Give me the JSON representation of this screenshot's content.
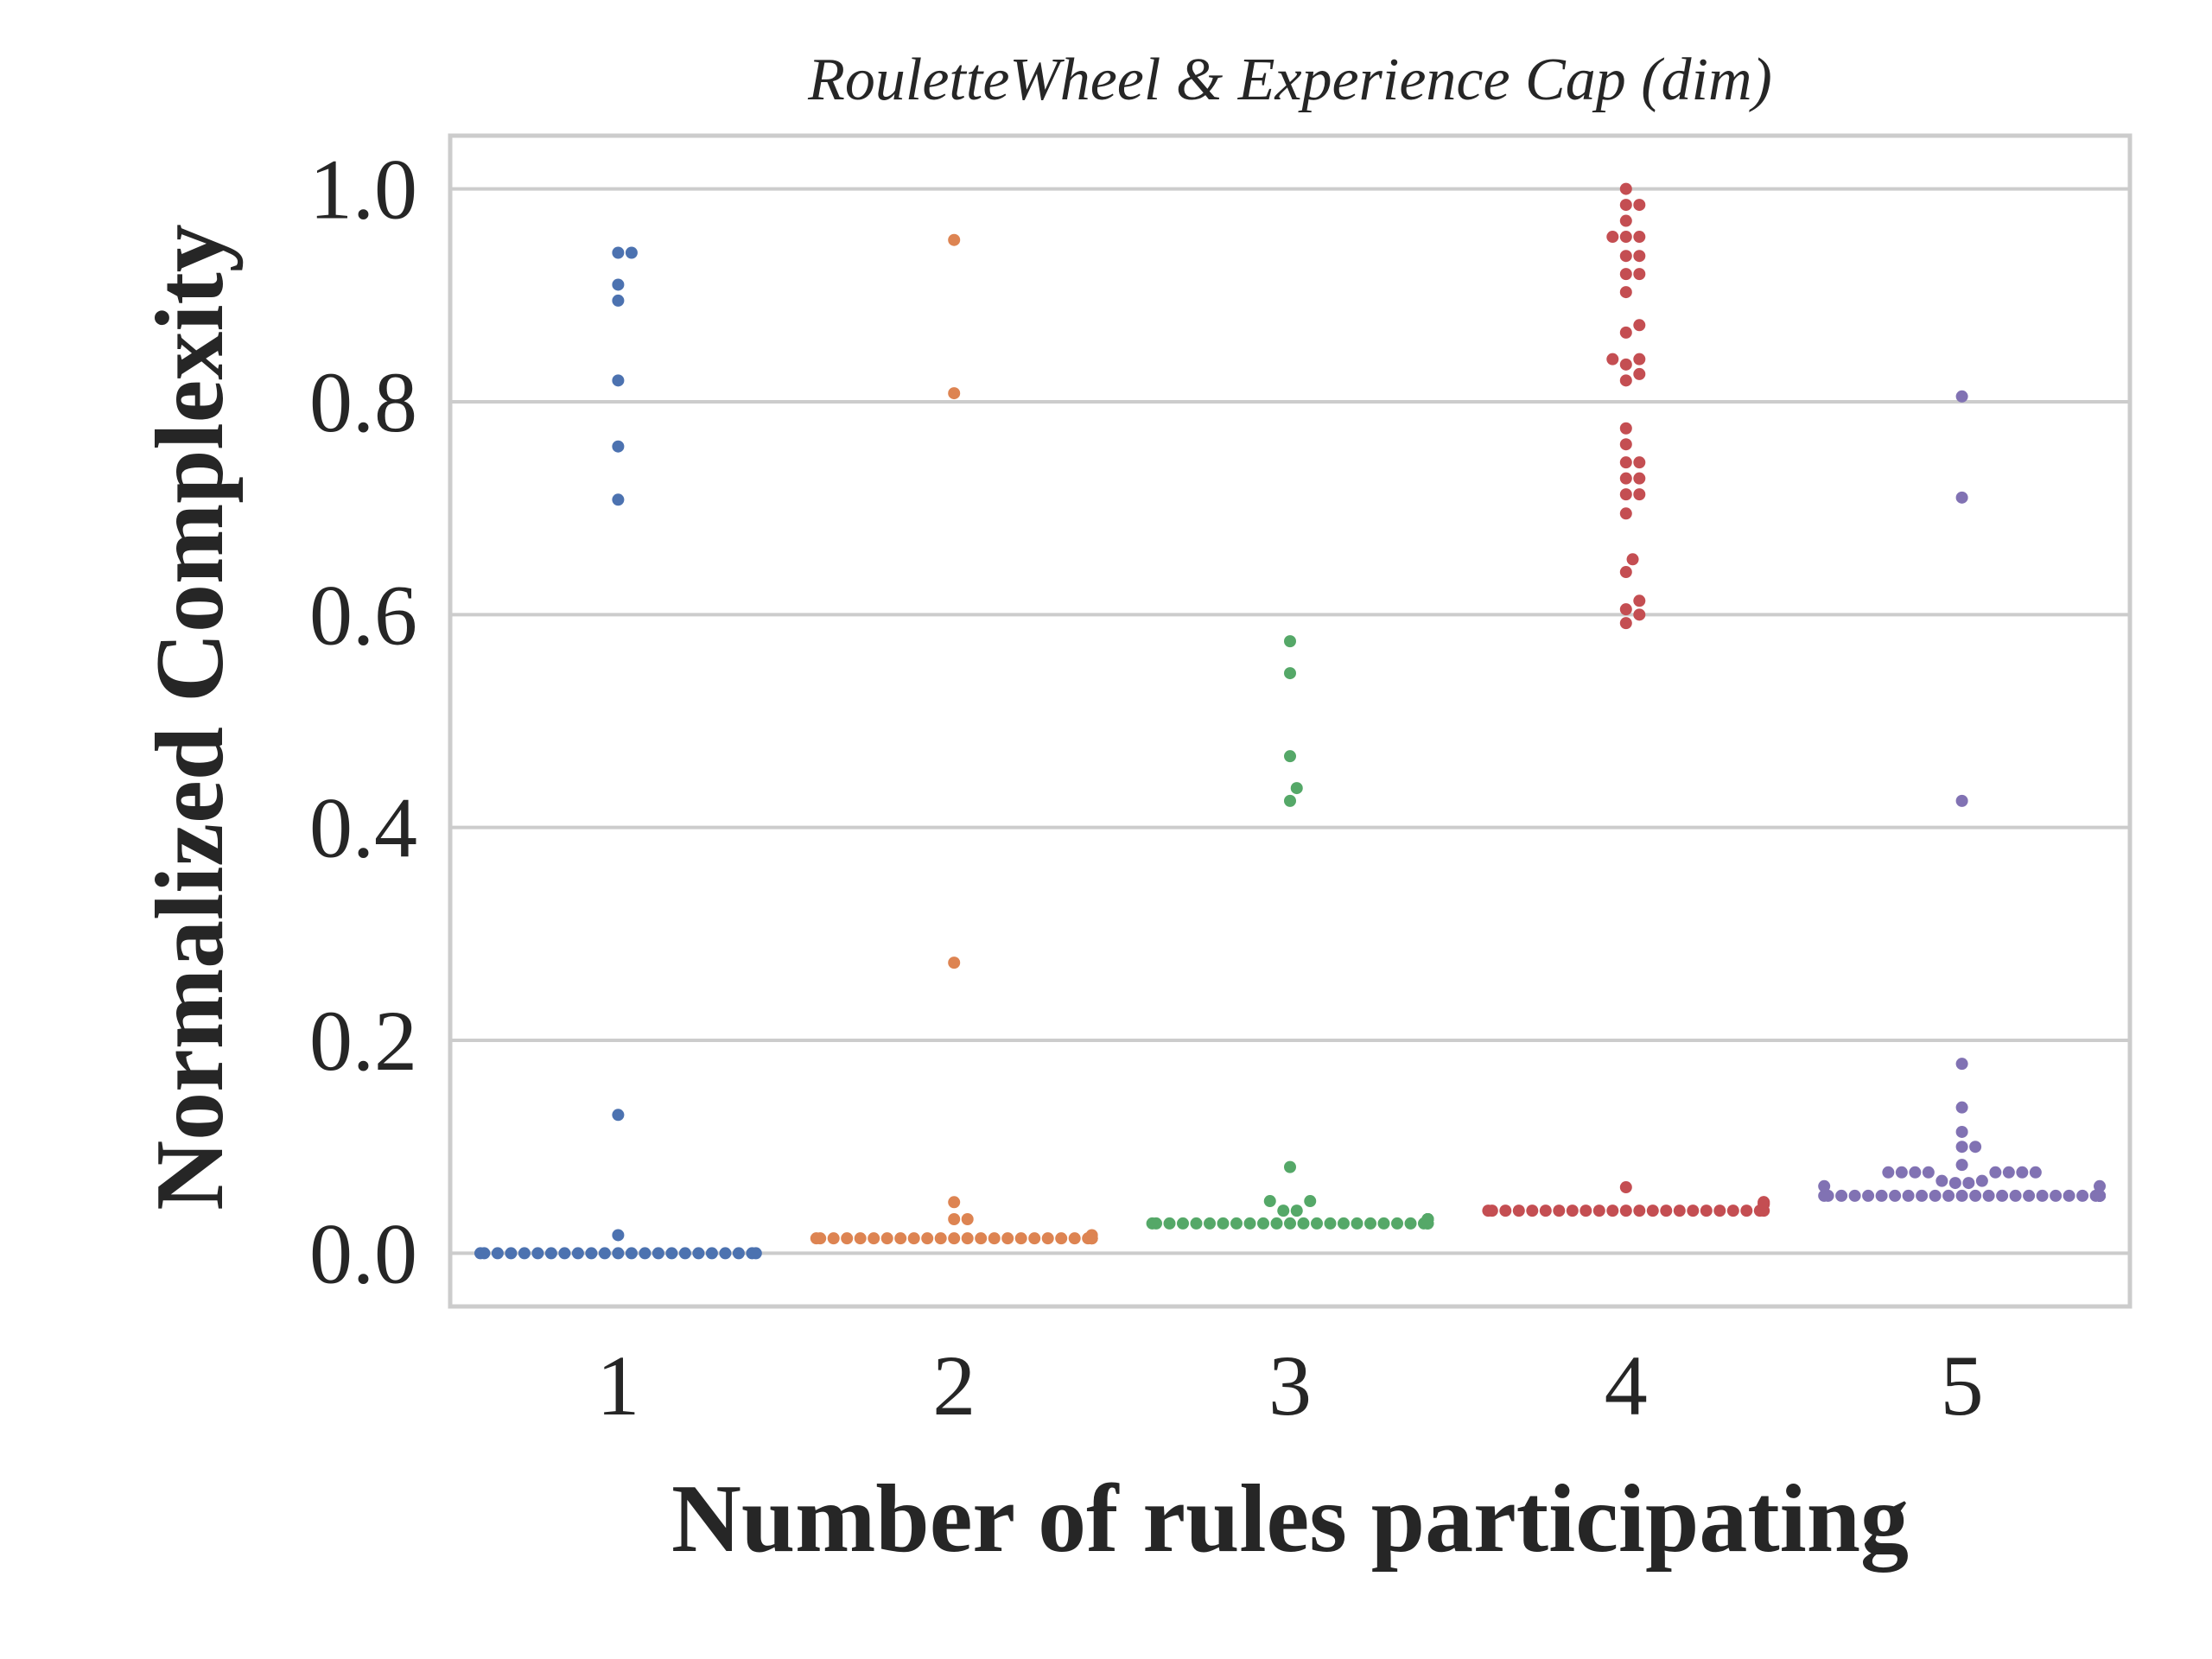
{
  "chart_data": {
    "type": "scatter",
    "subtype": "swarm",
    "title": "RouletteWheel & Experience Cap (dim)",
    "xlabel": "Number of rules participating",
    "ylabel": "Normalized Complexity",
    "categories": [
      "1",
      "2",
      "3",
      "4",
      "5"
    ],
    "ylim": [
      -0.05,
      1.05
    ],
    "yticks": [
      "0.0",
      "0.2",
      "0.4",
      "0.6",
      "0.8",
      "1.0"
    ],
    "ytick_values": [
      0.0,
      0.2,
      0.4,
      0.6,
      0.8,
      1.0
    ],
    "grid": true,
    "legend": "none",
    "series": [
      {
        "category": "1",
        "color": "#4c72b0",
        "values": [
          0.94,
          0.94,
          0.91,
          0.895,
          0.82,
          0.758,
          0.708,
          0.13,
          0.017,
          0.0,
          0.0,
          0.0,
          0.0,
          0.0,
          0.0,
          0.0,
          0.0,
          0.0,
          0.0,
          0.0,
          0.0,
          0.0,
          0.0,
          0.0,
          0.0,
          0.0,
          0.0,
          0.0,
          0.0,
          0.0,
          0.0,
          0.0
        ]
      },
      {
        "category": "2",
        "color": "#dd8452",
        "values": [
          0.952,
          0.808,
          0.273,
          0.048,
          0.032,
          0.032,
          0.017,
          0.014,
          0.014,
          0.014,
          0.014,
          0.014,
          0.014,
          0.014,
          0.014,
          0.014,
          0.014,
          0.014,
          0.014,
          0.014,
          0.014,
          0.014,
          0.014,
          0.014,
          0.014,
          0.014,
          0.014,
          0.014,
          0.014,
          0.014,
          0.014,
          0.014,
          0.014
        ]
      },
      {
        "category": "3",
        "color": "#55a868",
        "values": [
          0.575,
          0.545,
          0.467,
          0.437,
          0.425,
          0.081,
          0.049,
          0.049,
          0.04,
          0.04,
          0.032,
          0.032,
          0.032,
          0.032,
          0.028,
          0.028,
          0.028,
          0.028,
          0.028,
          0.028,
          0.028,
          0.028,
          0.028,
          0.028,
          0.028,
          0.028,
          0.028,
          0.028,
          0.028,
          0.028,
          0.028,
          0.028,
          0.028,
          0.028,
          0.028,
          0.028,
          0.028,
          0.028
        ]
      },
      {
        "category": "4",
        "color": "#c44e52",
        "values": [
          1.0,
          0.985,
          0.985,
          0.97,
          0.955,
          0.955,
          0.955,
          0.937,
          0.937,
          0.92,
          0.92,
          0.903,
          0.872,
          0.865,
          0.84,
          0.84,
          0.835,
          0.826,
          0.82,
          0.775,
          0.76,
          0.743,
          0.743,
          0.728,
          0.728,
          0.713,
          0.713,
          0.695,
          0.652,
          0.64,
          0.613,
          0.605,
          0.6,
          0.592,
          0.062,
          0.048,
          0.048,
          0.046,
          0.046,
          0.04,
          0.04,
          0.04,
          0.04,
          0.04,
          0.04,
          0.04,
          0.04,
          0.04,
          0.04,
          0.04,
          0.04,
          0.04,
          0.04,
          0.04,
          0.04,
          0.04,
          0.04,
          0.04,
          0.04,
          0.04,
          0.04,
          0.04
        ]
      },
      {
        "category": "5",
        "color": "#8172b3",
        "values": [
          0.805,
          0.71,
          0.425,
          0.178,
          0.137,
          0.114,
          0.1,
          0.1,
          0.083,
          0.076,
          0.076,
          0.076,
          0.076,
          0.076,
          0.076,
          0.076,
          0.076,
          0.068,
          0.068,
          0.066,
          0.066,
          0.063,
          0.063,
          0.054,
          0.054,
          0.054,
          0.054,
          0.054,
          0.054,
          0.054,
          0.054,
          0.054,
          0.054,
          0.054,
          0.054,
          0.054,
          0.054,
          0.054,
          0.054,
          0.054,
          0.054,
          0.054,
          0.054,
          0.054,
          0.054,
          0.054,
          0.054,
          0.054,
          0.054,
          0.054,
          0.054
        ]
      }
    ]
  }
}
